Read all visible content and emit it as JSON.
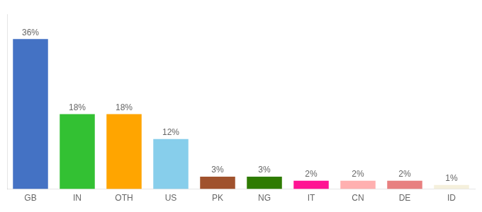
{
  "chart_data": {
    "type": "bar",
    "categories": [
      "GB",
      "IN",
      "OTH",
      "US",
      "PK",
      "NG",
      "IT",
      "CN",
      "DE",
      "ID"
    ],
    "values": [
      36,
      18,
      18,
      12,
      3,
      3,
      2,
      2,
      2,
      1
    ],
    "value_labels": [
      "36%",
      "18%",
      "18%",
      "12%",
      "3%",
      "3%",
      "2%",
      "2%",
      "2%",
      "1%"
    ],
    "colors": [
      "#4472C4",
      "#33C133",
      "#FFA500",
      "#87CEEB",
      "#A0522D",
      "#2E7B00",
      "#FF1493",
      "#FFB0B0",
      "#E88080",
      "#F5F0DC"
    ],
    "ylim": [
      0,
      42
    ],
    "grid": false,
    "data_labels": true,
    "tick_labels": "x"
  }
}
